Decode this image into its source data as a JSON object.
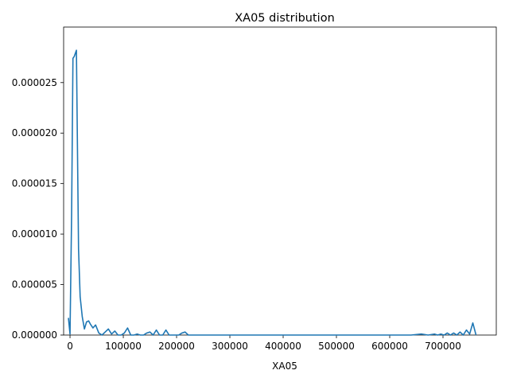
{
  "chart_data": {
    "type": "line",
    "title": "XA05 distribution",
    "xlabel": "XA05",
    "ylabel": "",
    "xlim": [
      -12000,
      800000
    ],
    "ylim": [
      0,
      3.05e-05
    ],
    "grid": false,
    "legend": "none",
    "x_ticks": [
      {
        "value": 0,
        "label": "0"
      },
      {
        "value": 100000,
        "label": "100000"
      },
      {
        "value": 200000,
        "label": "200000"
      },
      {
        "value": 300000,
        "label": "300000"
      },
      {
        "value": 400000,
        "label": "400000"
      },
      {
        "value": 500000,
        "label": "500000"
      },
      {
        "value": 600000,
        "label": "600000"
      },
      {
        "value": 700000,
        "label": "700000"
      }
    ],
    "y_ticks": [
      {
        "value": 0,
        "label": "0.000000"
      },
      {
        "value": 5e-06,
        "label": "0.000005"
      },
      {
        "value": 1e-05,
        "label": "0.000010"
      },
      {
        "value": 1.5e-05,
        "label": "0.000015"
      },
      {
        "value": 2e-05,
        "label": "0.000020"
      },
      {
        "value": 2.5e-05,
        "label": "0.000025"
      }
    ],
    "series": [
      {
        "color": "#1f77b4",
        "x": [
          -3000,
          0,
          3000,
          5500,
          8000,
          12000,
          16000,
          19000,
          23000,
          27000,
          31000,
          35000,
          38000,
          43000,
          48000,
          54000,
          60000,
          66000,
          72000,
          78000,
          84000,
          90000,
          96000,
          102000,
          108000,
          114000,
          120000,
          126000,
          132000,
          138000,
          144000,
          150000,
          156000,
          162000,
          168000,
          174000,
          180000,
          186000,
          192000,
          198000,
          204000,
          210000,
          216000,
          222000,
          228000,
          234000,
          240000,
          246000,
          252000,
          258000,
          264000,
          270000,
          290000,
          350000,
          450000,
          550000,
          600000,
          640000,
          660000,
          672000,
          684000,
          690000,
          696000,
          702000,
          708000,
          714000,
          720000,
          726000,
          732000,
          738000,
          744000,
          750000,
          756000,
          762000
        ],
        "y": [
          1.7e-06,
          1e-07,
          1.2e-05,
          2.74e-05,
          2.76e-05,
          2.82e-05,
          8.5e-06,
          3.8e-06,
          1.8e-06,
          6e-07,
          1.3e-06,
          1.4e-06,
          1.1e-06,
          7e-07,
          1e-06,
          2e-07,
          0.0,
          3e-07,
          6e-07,
          1e-07,
          4e-07,
          0.0,
          0.0,
          2e-07,
          7e-07,
          0.0,
          0.0,
          1e-07,
          0.0,
          0.0,
          2e-07,
          3e-07,
          0.0,
          5e-07,
          0.0,
          0.0,
          5e-07,
          0.0,
          0.0,
          0.0,
          0.0,
          2e-07,
          3e-07,
          0.0,
          0.0,
          0.0,
          0.0,
          0.0,
          0.0,
          0.0,
          0.0,
          0.0,
          0.0,
          0.0,
          0.0,
          0.0,
          0.0,
          0.0,
          1e-07,
          0.0,
          1e-07,
          0.0,
          1e-07,
          0.0,
          2e-07,
          0.0,
          2e-07,
          0.0,
          3e-07,
          0.0,
          5e-07,
          1e-07,
          1.2e-06,
          0.0
        ]
      }
    ]
  }
}
